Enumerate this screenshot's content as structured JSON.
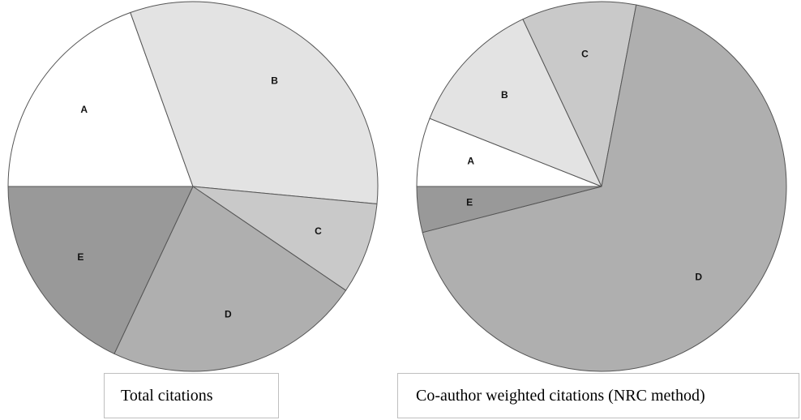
{
  "chart_data": [
    {
      "type": "pie",
      "title": "Total citations",
      "categories": [
        "A",
        "B",
        "C",
        "D",
        "E"
      ],
      "values": [
        19.5,
        32.0,
        8.0,
        22.5,
        18.0
      ],
      "colors": [
        "#ffffff",
        "#e3e3e3",
        "#c9c9c9",
        "#afafaf",
        "#999999"
      ],
      "start_angle_deg": 180,
      "legend": "none"
    },
    {
      "type": "pie",
      "title": "Co-author weighted citations (NRC method)",
      "categories": [
        "A",
        "B",
        "C",
        "D",
        "E"
      ],
      "values": [
        6.0,
        12.0,
        10.0,
        68.0,
        4.0
      ],
      "colors": [
        "#ffffff",
        "#e3e3e3",
        "#c9c9c9",
        "#afafaf",
        "#999999"
      ],
      "start_angle_deg": 180,
      "legend": "none"
    }
  ]
}
